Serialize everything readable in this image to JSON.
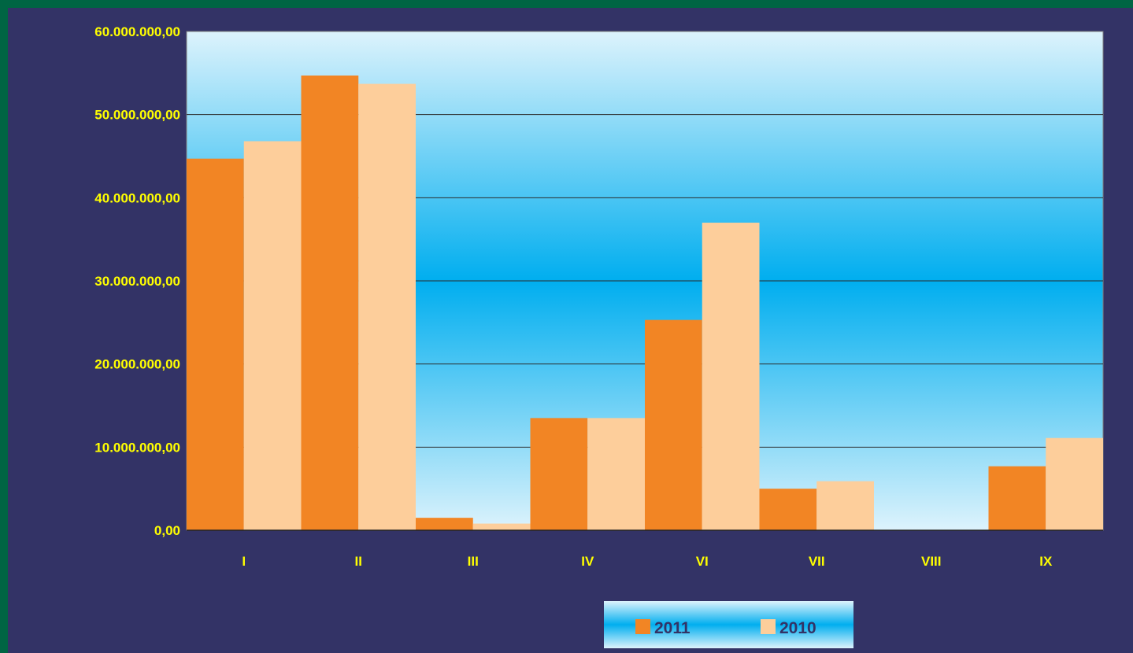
{
  "chart_data": {
    "type": "bar",
    "title": "",
    "xlabel": "",
    "ylabel": "",
    "categories": [
      "I",
      "II",
      "III",
      "IV",
      "VI",
      "VII",
      "VIII",
      "IX"
    ],
    "series": [
      {
        "name": "2011",
        "color": "#F28524",
        "values": [
          44700000,
          54700000,
          1500000,
          13500000,
          25300000,
          5000000,
          0,
          7700000
        ]
      },
      {
        "name": "2010",
        "color": "#FDCE9B",
        "values": [
          46800000,
          53700000,
          800000,
          13500000,
          37000000,
          5900000,
          0,
          11100000
        ]
      }
    ],
    "ylim": [
      0,
      60000000
    ],
    "yticks": [
      0,
      10000000,
      20000000,
      30000000,
      40000000,
      50000000,
      60000000
    ],
    "ytick_labels": [
      "0,00",
      "10.000.000,00",
      "20.000.000,00",
      "30.000.000,00",
      "40.000.000,00",
      "50.000.000,00",
      "60.000.000,00"
    ],
    "grid": true,
    "legend": {
      "position": "bottom-center",
      "labels": [
        "2011",
        "2010"
      ]
    },
    "colors": {
      "outer_border": "#006543",
      "background": "#333366",
      "plot_gradient_edge": "#DDF3FC",
      "plot_gradient_center": "#00AEEF",
      "tick_label_color": "#FFFF00",
      "legend_text_color": "#333366"
    }
  }
}
